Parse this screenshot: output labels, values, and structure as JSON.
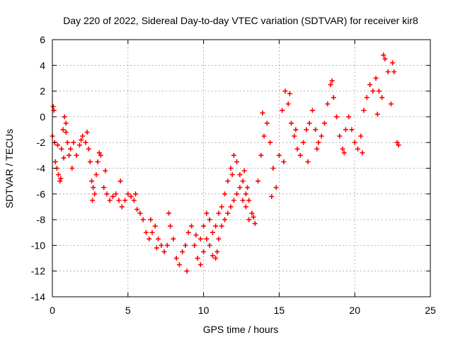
{
  "chart_data": {
    "type": "scatter",
    "title": "Day 220 of 2022, Sidereal Day-to-day VTEC variation (SDTVAR) for receiver kir8",
    "xlabel": "GPS time / hours",
    "ylabel": "SDTVAR / TECUs",
    "xlim": [
      0,
      25
    ],
    "ylim": [
      -14,
      6
    ],
    "xticks": [
      "0",
      "5",
      "10",
      "15",
      "20",
      "25"
    ],
    "yticks": [
      "6",
      "4",
      "2",
      "0",
      "-2",
      "-4",
      "-6",
      "-8",
      "-10",
      "-12",
      "-14"
    ],
    "grid": true,
    "marker": "+",
    "color": "#ff0000",
    "series": [
      {
        "name": "SDTVAR",
        "points": [
          [
            0.0,
            -1.5
          ],
          [
            0.1,
            0.5
          ],
          [
            0.15,
            -2.0
          ],
          [
            0.2,
            -3.5
          ],
          [
            0.3,
            -4.0
          ],
          [
            0.4,
            -4.5
          ],
          [
            0.5,
            -5.0
          ],
          [
            0.6,
            -2.5
          ],
          [
            0.7,
            -1.0
          ],
          [
            0.8,
            0.0
          ],
          [
            0.9,
            -0.5
          ],
          [
            1.0,
            -2.0
          ],
          [
            1.1,
            -3.0
          ],
          [
            1.2,
            -2.5
          ],
          [
            1.4,
            -2.0
          ],
          [
            1.6,
            -3.0
          ],
          [
            1.8,
            -2.2
          ],
          [
            2.0,
            -1.5
          ],
          [
            2.2,
            -2.0
          ],
          [
            2.4,
            -2.5
          ],
          [
            2.5,
            -3.5
          ],
          [
            2.6,
            -5.0
          ],
          [
            2.7,
            -5.5
          ],
          [
            2.8,
            -6.0
          ],
          [
            2.9,
            -4.5
          ],
          [
            3.0,
            -3.5
          ],
          [
            3.1,
            -2.8
          ],
          [
            3.2,
            -3.0
          ],
          [
            3.4,
            -5.5
          ],
          [
            3.6,
            -6.0
          ],
          [
            3.8,
            -6.5
          ],
          [
            4.0,
            -6.2
          ],
          [
            4.2,
            -6.0
          ],
          [
            4.4,
            -6.5
          ],
          [
            4.6,
            -7.0
          ],
          [
            4.8,
            -6.5
          ],
          [
            5.0,
            -6.0
          ],
          [
            5.2,
            -6.2
          ],
          [
            5.4,
            -6.5
          ],
          [
            5.6,
            -7.2
          ],
          [
            5.8,
            -7.5
          ],
          [
            6.0,
            -8.0
          ],
          [
            6.2,
            -9.0
          ],
          [
            6.4,
            -9.5
          ],
          [
            6.6,
            -9.0
          ],
          [
            6.8,
            -8.5
          ],
          [
            7.0,
            -9.5
          ],
          [
            7.2,
            -10.0
          ],
          [
            7.4,
            -10.5
          ],
          [
            7.6,
            -10.0
          ],
          [
            7.8,
            -8.5
          ],
          [
            8.0,
            -9.5
          ],
          [
            8.2,
            -11.0
          ],
          [
            8.4,
            -11.5
          ],
          [
            8.6,
            -10.5
          ],
          [
            8.8,
            -10.0
          ],
          [
            9.0,
            -9.0
          ],
          [
            9.2,
            -8.5
          ],
          [
            9.4,
            -10.0
          ],
          [
            9.6,
            -11.0
          ],
          [
            9.8,
            -11.5
          ],
          [
            10.0,
            -10.5
          ],
          [
            10.2,
            -9.5
          ],
          [
            10.4,
            -10.0
          ],
          [
            10.6,
            -10.8
          ],
          [
            10.8,
            -11.0
          ],
          [
            11.0,
            -9.5
          ],
          [
            11.2,
            -8.5
          ],
          [
            11.4,
            -8.0
          ],
          [
            11.6,
            -7.5
          ],
          [
            11.8,
            -7.0
          ],
          [
            12.0,
            -6.5
          ],
          [
            12.2,
            -6.0
          ],
          [
            12.4,
            -5.5
          ],
          [
            12.6,
            -6.5
          ],
          [
            12.8,
            -7.0
          ],
          [
            13.0,
            -6.5
          ],
          [
            13.2,
            -7.5
          ],
          [
            13.4,
            -8.3
          ],
          [
            13.0,
            -8.0
          ],
          [
            12.8,
            -6.0
          ],
          [
            12.6,
            -5.0
          ],
          [
            12.4,
            -4.5
          ],
          [
            12.2,
            -3.5
          ],
          [
            12.0,
            -3.0
          ],
          [
            11.8,
            -4.0
          ],
          [
            11.6,
            -5.0
          ],
          [
            11.4,
            -6.0
          ],
          [
            11.2,
            -7.0
          ],
          [
            11.0,
            -7.5
          ],
          [
            10.8,
            -8.5
          ],
          [
            10.6,
            -9.0
          ],
          [
            10.4,
            -8.0
          ],
          [
            10.2,
            -7.5
          ],
          [
            10.0,
            -8.5
          ],
          [
            9.8,
            -9.5
          ],
          [
            13.6,
            -5.0
          ],
          [
            13.8,
            -3.0
          ],
          [
            14.0,
            -1.5
          ],
          [
            14.2,
            -0.5
          ],
          [
            14.4,
            -2.0
          ],
          [
            14.6,
            -4.0
          ],
          [
            14.8,
            -5.5
          ],
          [
            15.0,
            -3.0
          ],
          [
            15.2,
            0.5
          ],
          [
            15.4,
            2.0
          ],
          [
            15.6,
            1.0
          ],
          [
            15.8,
            -0.5
          ],
          [
            16.0,
            -1.5
          ],
          [
            16.2,
            -2.5
          ],
          [
            16.4,
            -3.0
          ],
          [
            16.6,
            -2.0
          ],
          [
            16.8,
            -1.0
          ],
          [
            17.0,
            -0.5
          ],
          [
            17.2,
            0.5
          ],
          [
            17.4,
            -1.0
          ],
          [
            17.6,
            -2.0
          ],
          [
            17.8,
            -1.5
          ],
          [
            18.0,
            -0.5
          ],
          [
            18.2,
            1.0
          ],
          [
            18.4,
            2.5
          ],
          [
            18.6,
            1.5
          ],
          [
            18.8,
            0.0
          ],
          [
            19.0,
            -1.5
          ],
          [
            19.2,
            -2.5
          ],
          [
            19.4,
            -1.0
          ],
          [
            19.6,
            0.0
          ],
          [
            19.8,
            -1.0
          ],
          [
            20.0,
            -2.0
          ],
          [
            20.2,
            -2.5
          ],
          [
            20.4,
            -1.5
          ],
          [
            20.6,
            0.5
          ],
          [
            20.8,
            1.5
          ],
          [
            21.0,
            2.5
          ],
          [
            21.2,
            2.0
          ],
          [
            21.4,
            3.0
          ],
          [
            21.6,
            2.0
          ],
          [
            21.8,
            1.5
          ],
          [
            22.0,
            4.5
          ],
          [
            22.2,
            3.5
          ],
          [
            22.4,
            1.0
          ],
          [
            22.6,
            3.5
          ],
          [
            22.8,
            -2.0
          ],
          [
            13.3,
            -7.8
          ],
          [
            14.5,
            -6.2
          ],
          [
            15.3,
            -3.5
          ],
          [
            16.9,
            -3.5
          ],
          [
            17.5,
            -2.5
          ],
          [
            18.5,
            2.8
          ],
          [
            19.3,
            -2.8
          ],
          [
            20.5,
            -2.8
          ],
          [
            21.9,
            4.8
          ],
          [
            22.5,
            4.2
          ],
          [
            22.9,
            -2.2
          ],
          [
            21.5,
            0.2
          ],
          [
            15.7,
            1.8
          ],
          [
            16.1,
            -1.0
          ],
          [
            13.9,
            0.3
          ],
          [
            12.7,
            -4.2
          ],
          [
            12.9,
            -5.5
          ],
          [
            11.9,
            -4.5
          ],
          [
            10.9,
            -10.5
          ],
          [
            9.5,
            -9.2
          ],
          [
            8.9,
            -12.0
          ],
          [
            7.7,
            -7.5
          ],
          [
            6.9,
            -10.2
          ],
          [
            6.5,
            -8.0
          ],
          [
            5.5,
            -6.0
          ],
          [
            4.5,
            -5.0
          ],
          [
            3.5,
            -4.2
          ],
          [
            2.3,
            -1.2
          ],
          [
            1.9,
            -1.8
          ],
          [
            0.9,
            -1.2
          ],
          [
            0.05,
            0.8
          ],
          [
            0.35,
            -2.2
          ],
          [
            0.55,
            -4.8
          ],
          [
            0.75,
            -3.2
          ],
          [
            1.3,
            -4.0
          ],
          [
            2.65,
            -6.5
          ]
        ]
      }
    ]
  }
}
